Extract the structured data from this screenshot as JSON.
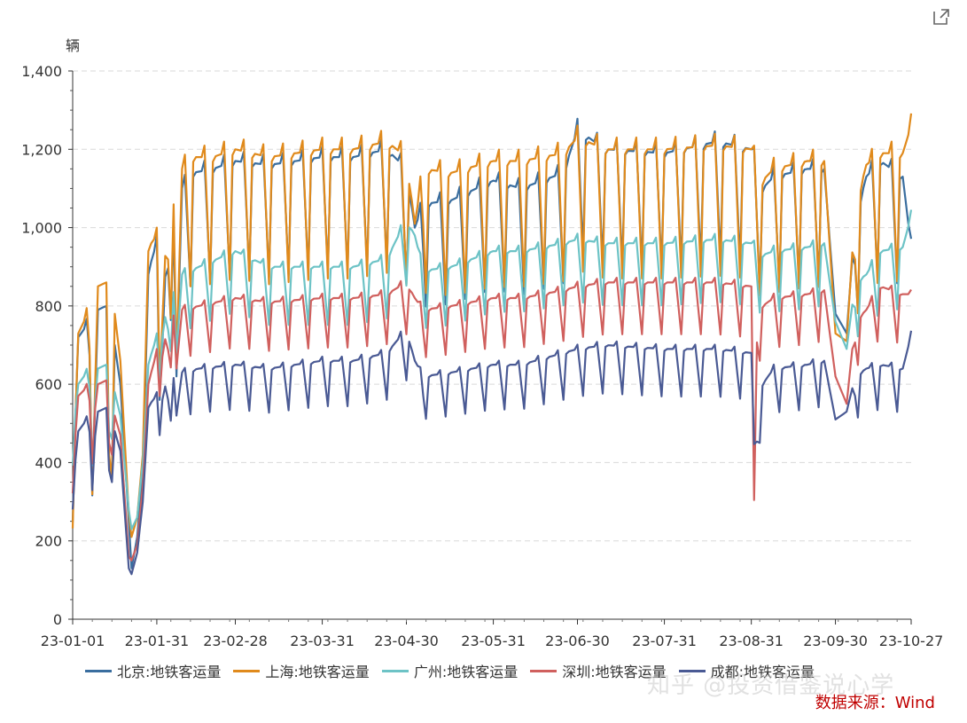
{
  "chart_data": {
    "type": "line",
    "y_unit": "辆",
    "ylim": [
      0,
      1400
    ],
    "y_ticks": [
      "0",
      "200",
      "400",
      "600",
      "800",
      "1,000",
      "1,200",
      "1,400"
    ],
    "y_tick_values": [
      0,
      200,
      400,
      600,
      800,
      1000,
      1200,
      1400
    ],
    "x_range_days": [
      0,
      299
    ],
    "x_ticks": [
      "23-01-01",
      "23-01-31",
      "23-02-28",
      "23-03-31",
      "23-04-30",
      "23-05-31",
      "23-06-30",
      "23-07-31",
      "23-08-31",
      "23-09-30",
      "23-10-27"
    ],
    "x_tick_days": [
      0,
      30,
      58,
      89,
      119,
      150,
      180,
      211,
      242,
      272,
      299
    ],
    "grid": true,
    "legend_position": "bottom",
    "series": [
      {
        "name": "北京:地铁客运量",
        "color": "#3a6e9f",
        "anchors": [
          [
            0,
            330
          ],
          [
            2,
            720
          ],
          [
            6,
            760
          ],
          [
            7,
            420
          ],
          [
            8,
            560
          ],
          [
            9,
            790
          ],
          [
            12,
            800
          ],
          [
            13,
            400
          ],
          [
            14,
            380
          ],
          [
            15,
            700
          ],
          [
            17,
            600
          ],
          [
            20,
            250
          ],
          [
            21,
            130
          ],
          [
            23,
            210
          ],
          [
            25,
            380
          ],
          [
            27,
            880
          ],
          [
            30,
            980
          ],
          [
            31,
            560
          ],
          [
            32,
            700
          ],
          [
            34,
            1010
          ],
          [
            36,
            1020
          ],
          [
            37,
            620
          ],
          [
            39,
            1100
          ],
          [
            43,
            1140
          ],
          [
            50,
            1150
          ],
          [
            58,
            1170
          ],
          [
            70,
            1160
          ],
          [
            89,
            1180
          ],
          [
            100,
            1180
          ],
          [
            112,
            1200
          ],
          [
            119,
            1150
          ],
          [
            122,
            1000
          ],
          [
            125,
            1060
          ],
          [
            135,
            1070
          ],
          [
            150,
            1120
          ],
          [
            160,
            1100
          ],
          [
            175,
            1140
          ],
          [
            180,
            1250
          ],
          [
            190,
            1200
          ],
          [
            211,
            1190
          ],
          [
            230,
            1220
          ],
          [
            242,
            1200
          ],
          [
            246,
            1100
          ],
          [
            250,
            1130
          ],
          [
            262,
            1150
          ],
          [
            268,
            1150
          ],
          [
            272,
            780
          ],
          [
            276,
            730
          ],
          [
            279,
            1020
          ],
          [
            283,
            1130
          ],
          [
            288,
            1170
          ],
          [
            296,
            1130
          ],
          [
            299,
            950
          ]
        ],
        "amp": 0.45
      },
      {
        "name": "上海:地铁客运量",
        "color": "#e08a1c",
        "anchors": [
          [
            0,
            320
          ],
          [
            2,
            730
          ],
          [
            6,
            790
          ],
          [
            7,
            440
          ],
          [
            8,
            600
          ],
          [
            9,
            850
          ],
          [
            12,
            860
          ],
          [
            13,
            420
          ],
          [
            14,
            360
          ],
          [
            15,
            780
          ],
          [
            17,
            660
          ],
          [
            20,
            270
          ],
          [
            21,
            210
          ],
          [
            23,
            260
          ],
          [
            25,
            420
          ],
          [
            27,
            940
          ],
          [
            30,
            1000
          ],
          [
            31,
            600
          ],
          [
            32,
            760
          ],
          [
            34,
            1050
          ],
          [
            36,
            1070
          ],
          [
            37,
            650
          ],
          [
            39,
            1150
          ],
          [
            43,
            1180
          ],
          [
            50,
            1180
          ],
          [
            58,
            1200
          ],
          [
            70,
            1180
          ],
          [
            89,
            1200
          ],
          [
            100,
            1200
          ],
          [
            112,
            1220
          ],
          [
            119,
            1180
          ],
          [
            122,
            1010
          ],
          [
            125,
            1150
          ],
          [
            135,
            1140
          ],
          [
            150,
            1170
          ],
          [
            160,
            1170
          ],
          [
            175,
            1190
          ],
          [
            180,
            1230
          ],
          [
            190,
            1200
          ],
          [
            211,
            1200
          ],
          [
            230,
            1210
          ],
          [
            242,
            1200
          ],
          [
            246,
            1120
          ],
          [
            250,
            1150
          ],
          [
            262,
            1170
          ],
          [
            268,
            1170
          ],
          [
            272,
            730
          ],
          [
            276,
            710
          ],
          [
            279,
            1050
          ],
          [
            283,
            1160
          ],
          [
            288,
            1190
          ],
          [
            296,
            1190
          ],
          [
            299,
            1260
          ]
        ],
        "amp": 0.5
      },
      {
        "name": "广州:地铁客运量",
        "color": "#6dc3c6",
        "anchors": [
          [
            0,
            470
          ],
          [
            2,
            600
          ],
          [
            6,
            640
          ],
          [
            7,
            470
          ],
          [
            8,
            560
          ],
          [
            9,
            640
          ],
          [
            12,
            650
          ],
          [
            13,
            480
          ],
          [
            14,
            460
          ],
          [
            15,
            580
          ],
          [
            17,
            520
          ],
          [
            20,
            280
          ],
          [
            21,
            230
          ],
          [
            23,
            260
          ],
          [
            25,
            400
          ],
          [
            27,
            650
          ],
          [
            30,
            730
          ],
          [
            31,
            600
          ],
          [
            32,
            720
          ],
          [
            34,
            800
          ],
          [
            36,
            840
          ],
          [
            37,
            680
          ],
          [
            39,
            880
          ],
          [
            45,
            900
          ],
          [
            58,
            940
          ],
          [
            70,
            900
          ],
          [
            89,
            900
          ],
          [
            100,
            900
          ],
          [
            112,
            920
          ],
          [
            119,
            1020
          ],
          [
            122,
            980
          ],
          [
            125,
            890
          ],
          [
            135,
            900
          ],
          [
            150,
            940
          ],
          [
            160,
            940
          ],
          [
            175,
            960
          ],
          [
            180,
            970
          ],
          [
            190,
            960
          ],
          [
            211,
            960
          ],
          [
            230,
            970
          ],
          [
            242,
            960
          ],
          [
            246,
            930
          ],
          [
            250,
            940
          ],
          [
            262,
            950
          ],
          [
            268,
            960
          ],
          [
            272,
            760
          ],
          [
            276,
            690
          ],
          [
            279,
            860
          ],
          [
            283,
            880
          ],
          [
            288,
            940
          ],
          [
            296,
            950
          ],
          [
            299,
            1030
          ]
        ],
        "amp": 0.3
      },
      {
        "name": "深圳:地铁客运量",
        "color": "#d0605e",
        "anchors": [
          [
            0,
            380
          ],
          [
            2,
            570
          ],
          [
            6,
            600
          ],
          [
            7,
            470
          ],
          [
            8,
            540
          ],
          [
            9,
            600
          ],
          [
            12,
            610
          ],
          [
            13,
            450
          ],
          [
            14,
            420
          ],
          [
            15,
            520
          ],
          [
            17,
            470
          ],
          [
            20,
            160
          ],
          [
            21,
            150
          ],
          [
            23,
            190
          ],
          [
            25,
            340
          ],
          [
            27,
            600
          ],
          [
            30,
            690
          ],
          [
            31,
            570
          ],
          [
            32,
            670
          ],
          [
            34,
            740
          ],
          [
            36,
            780
          ],
          [
            37,
            640
          ],
          [
            39,
            790
          ],
          [
            45,
            800
          ],
          [
            58,
            820
          ],
          [
            70,
            810
          ],
          [
            89,
            820
          ],
          [
            100,
            820
          ],
          [
            112,
            830
          ],
          [
            119,
            860
          ],
          [
            122,
            820
          ],
          [
            125,
            790
          ],
          [
            135,
            800
          ],
          [
            150,
            820
          ],
          [
            160,
            820
          ],
          [
            175,
            840
          ],
          [
            180,
            850
          ],
          [
            190,
            860
          ],
          [
            211,
            860
          ],
          [
            230,
            860
          ],
          [
            242,
            850
          ],
          [
            243,
            300
          ],
          [
            244,
            760
          ],
          [
            246,
            800
          ],
          [
            250,
            820
          ],
          [
            262,
            830
          ],
          [
            268,
            840
          ],
          [
            272,
            620
          ],
          [
            276,
            550
          ],
          [
            279,
            760
          ],
          [
            283,
            790
          ],
          [
            288,
            850
          ],
          [
            296,
            830
          ],
          [
            299,
            830
          ]
        ],
        "amp": 0.28
      },
      {
        "name": "成都:地铁客运量",
        "color": "#4a5a94",
        "anchors": [
          [
            0,
            340
          ],
          [
            2,
            480
          ],
          [
            6,
            520
          ],
          [
            7,
            400
          ],
          [
            8,
            470
          ],
          [
            9,
            530
          ],
          [
            12,
            540
          ],
          [
            13,
            380
          ],
          [
            14,
            350
          ],
          [
            15,
            480
          ],
          [
            17,
            430
          ],
          [
            20,
            130
          ],
          [
            21,
            115
          ],
          [
            23,
            170
          ],
          [
            25,
            300
          ],
          [
            27,
            540
          ],
          [
            30,
            580
          ],
          [
            31,
            470
          ],
          [
            32,
            560
          ],
          [
            34,
            610
          ],
          [
            36,
            620
          ],
          [
            37,
            520
          ],
          [
            39,
            630
          ],
          [
            45,
            640
          ],
          [
            58,
            650
          ],
          [
            70,
            640
          ],
          [
            89,
            660
          ],
          [
            100,
            660
          ],
          [
            112,
            680
          ],
          [
            119,
            740
          ],
          [
            122,
            660
          ],
          [
            125,
            620
          ],
          [
            135,
            630
          ],
          [
            150,
            650
          ],
          [
            160,
            650
          ],
          [
            175,
            680
          ],
          [
            180,
            690
          ],
          [
            190,
            700
          ],
          [
            211,
            690
          ],
          [
            230,
            690
          ],
          [
            242,
            680
          ],
          [
            243,
            440
          ],
          [
            246,
            600
          ],
          [
            250,
            640
          ],
          [
            262,
            650
          ],
          [
            268,
            660
          ],
          [
            272,
            510
          ],
          [
            276,
            530
          ],
          [
            279,
            620
          ],
          [
            283,
            640
          ],
          [
            288,
            650
          ],
          [
            296,
            640
          ],
          [
            299,
            725
          ]
        ],
        "amp": 0.32
      }
    ]
  },
  "legend": [
    {
      "label": "北京:地铁客运量",
      "color": "#3a6e9f"
    },
    {
      "label": "上海:地铁客运量",
      "color": "#e08a1c"
    },
    {
      "label": "广州:地铁客运量",
      "color": "#6dc3c6"
    },
    {
      "label": "深圳:地铁客运量",
      "color": "#d0605e"
    },
    {
      "label": "成都:地铁客运量",
      "color": "#4a5a94"
    }
  ],
  "source_text": "数据来源：Wind",
  "watermark_text": "知乎 @投资借鉴说心学",
  "export_icon": "external-link-icon"
}
